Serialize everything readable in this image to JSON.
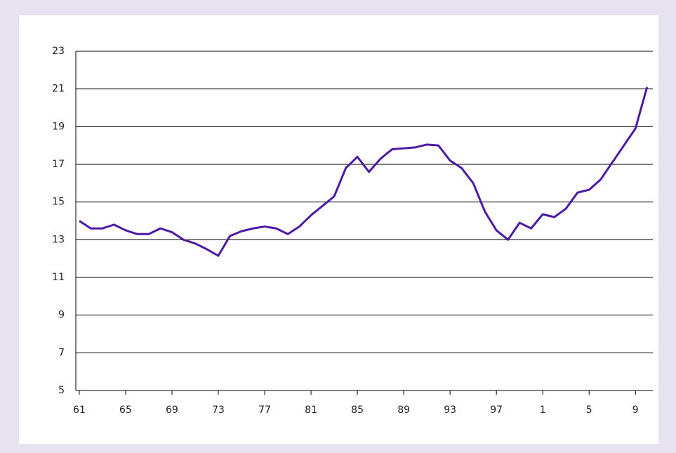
{
  "chart_data": {
    "type": "line",
    "x": [
      1961,
      1962,
      1963,
      1964,
      1965,
      1966,
      1967,
      1968,
      1969,
      1970,
      1971,
      1972,
      1973,
      1974,
      1975,
      1976,
      1977,
      1978,
      1979,
      1980,
      1981,
      1982,
      1983,
      1984,
      1985,
      1986,
      1987,
      1988,
      1989,
      1990,
      1991,
      1992,
      1993,
      1994,
      1995,
      1996,
      1997,
      1998,
      1999,
      2000,
      2001,
      2002,
      2003,
      2004,
      2005,
      2006,
      2007,
      2008,
      2009,
      2010
    ],
    "series": [
      {
        "color": "#4b1ba6",
        "values": [
          14.0,
          13.6,
          13.6,
          13.8,
          13.5,
          13.3,
          13.3,
          13.6,
          13.4,
          13.0,
          12.8,
          12.5,
          12.15,
          13.2,
          13.45,
          13.6,
          13.7,
          13.6,
          13.3,
          13.7,
          14.3,
          14.8,
          15.3,
          16.8,
          17.4,
          16.6,
          17.3,
          17.8,
          17.85,
          17.9,
          18.05,
          18.0,
          17.2,
          16.8,
          16.0,
          14.5,
          13.5,
          13.0,
          13.9,
          13.6,
          14.35,
          14.2,
          14.65,
          15.5,
          15.65,
          16.2,
          17.1,
          18.0,
          18.9,
          21.1
        ]
      }
    ],
    "xlim": [
      1960.7,
      2010.5
    ],
    "xticks": [
      {
        "value": 1961,
        "label": "61"
      },
      {
        "value": 1965,
        "label": "65"
      },
      {
        "value": 1969,
        "label": "69"
      },
      {
        "value": 1973,
        "label": "73"
      },
      {
        "value": 1977,
        "label": "77"
      },
      {
        "value": 1981,
        "label": "81"
      },
      {
        "value": 1985,
        "label": "85"
      },
      {
        "value": 1989,
        "label": "89"
      },
      {
        "value": 1993,
        "label": "93"
      },
      {
        "value": 1997,
        "label": "97"
      },
      {
        "value": 2001,
        "label": "1"
      },
      {
        "value": 2005,
        "label": "5"
      },
      {
        "value": 2009,
        "label": "9"
      }
    ],
    "ylim": [
      5,
      23
    ],
    "yticks": [
      5,
      7,
      9,
      11,
      13,
      15,
      17,
      19,
      21,
      23
    ],
    "grid": true
  }
}
